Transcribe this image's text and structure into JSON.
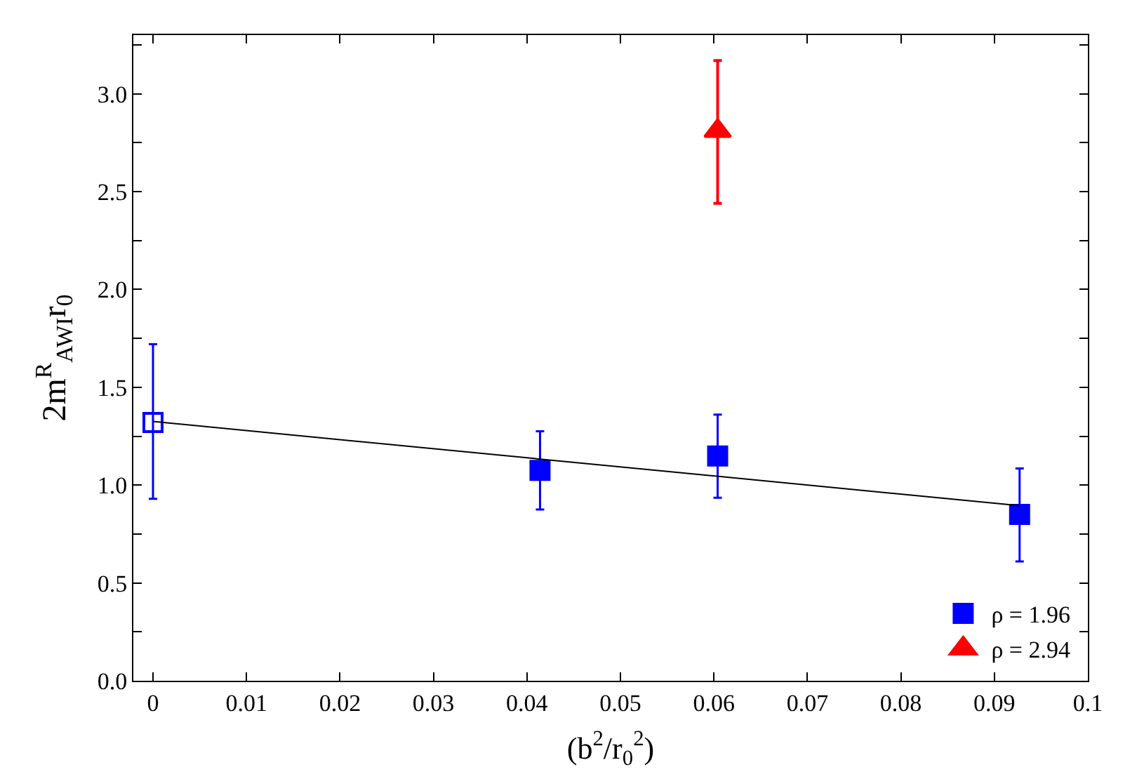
{
  "chart_data": {
    "type": "scatter",
    "xlabel": "(b$^{2}$/r$_{0}$$^{2}$)",
    "ylabel": "2m$^{R}$$_{AWI}$r$_{0}$",
    "xlim": [
      -0.0021,
      0.1
    ],
    "ylim": [
      0,
      3.3
    ],
    "xticks": [
      {
        "value": 0,
        "label": "0"
      },
      0.01,
      0.02,
      0.03,
      0.04,
      0.05,
      0.06,
      0.07,
      0.08,
      0.09,
      {
        "value": 0.1,
        "label": "0.1"
      }
    ],
    "yticks": [
      {
        "value": 0,
        "label": "0.0"
      },
      {
        "value": 0.25,
        "label": null
      },
      0.5,
      {
        "value": 0.75,
        "label": null
      },
      {
        "value": 1,
        "label": "1.0"
      },
      {
        "value": 1.25,
        "label": null
      },
      1.5,
      {
        "value": 1.75,
        "label": null
      },
      {
        "value": 2,
        "label": "2.0"
      },
      {
        "value": 2.25,
        "label": null
      },
      2.5,
      {
        "value": 2.75,
        "label": null
      },
      {
        "value": 3,
        "label": "3.0"
      },
      {
        "value": 3.25,
        "label": null
      }
    ],
    "legend": "bottom right",
    "series": [
      {
        "type": "line",
        "color": "#000000",
        "x": [
          0,
          0.0927
        ],
        "values": [
          1.325,
          0.895
        ],
        "marker": "none"
      },
      {
        "color": "#0000ff",
        "x": [
          0
        ],
        "values": [
          1.32
        ],
        "errors": [
          [
            0.93,
            1.72
          ]
        ],
        "marker": "square"
      },
      {
        "name": "ρ = 1.96",
        "color": "#0000ff",
        "x": [
          0.0414,
          0.0604,
          0.0927
        ],
        "values": [
          1.075,
          1.149,
          0.85
        ],
        "errors": [
          [
            0.875,
            1.275
          ],
          [
            0.935,
            1.36
          ],
          [
            0.61,
            1.085
          ]
        ],
        "marker": "square"
      },
      {
        "name": "ρ = 2.94",
        "color": "#ff0000",
        "x": [
          0.0604
        ],
        "values": [
          2.81
        ],
        "errors": [
          [
            2.44,
            3.17
          ]
        ],
        "marker": "triangle"
      }
    ]
  }
}
